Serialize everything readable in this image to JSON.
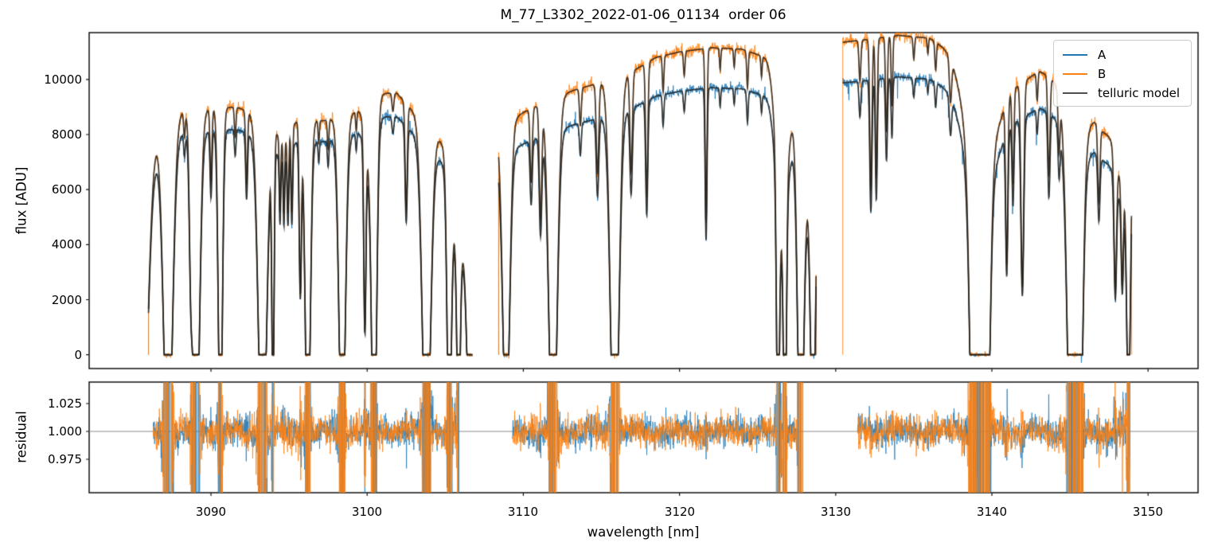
{
  "figure": {
    "title": "M_77_L3302_2022-01-06_01134  order 06",
    "xlabel": "wavelength [nm]",
    "ylabel_flux": "flux [ADU]",
    "ylabel_residual": "residual"
  },
  "chart_data": {
    "type": "line",
    "title": "M_77_L3302_2022-01-06_01134  order 06",
    "xlabel": "wavelength [nm]",
    "ylabel_top": "flux [ADU]",
    "ylabel_bottom": "residual",
    "grid": false,
    "legend_position": "upper right",
    "xlim": [
      3082.2,
      3153.2
    ],
    "x_tick_values": [
      3090,
      3100,
      3110,
      3120,
      3130,
      3140,
      3150
    ],
    "x_tick_labels": [
      "3090",
      "3100",
      "3110",
      "3120",
      "3130",
      "3140",
      "3150"
    ],
    "top_panel": {
      "ylim": [
        -500,
        11700
      ],
      "ytick_values": [
        0,
        2000,
        4000,
        6000,
        8000,
        10000
      ],
      "ytick_labels": [
        "0",
        "2000",
        "4000",
        "6000",
        "8000",
        "10000"
      ]
    },
    "residual_panel": {
      "ylim": [
        0.945,
        1.0443
      ],
      "ytick_values": [
        0.975,
        1.0,
        1.025
      ],
      "ytick_labels": [
        "0.975",
        "1.000",
        "1.025"
      ],
      "hline": 1.0,
      "hline_color": "#8a8a8a"
    },
    "series": [
      {
        "name": "A",
        "color": "#1f77b4"
      },
      {
        "name": "B",
        "color": "#ff7f0e"
      },
      {
        "name": "telluric model",
        "color": "#4d4d4d"
      }
    ],
    "colors": {
      "A": "#1f77b4",
      "B": "#ff7f0e",
      "model_stroke": "rgba(38,33,27,0.85)",
      "spine": "#111111"
    },
    "segments": [
      {
        "x_start": 3086.0,
        "x_end": 3106.75,
        "residual_x": [
          3086.3,
          3105.9
        ],
        "a_scale": 0.91,
        "b_zero_start": true,
        "a_zero_start": true,
        "b_zero_end": false,
        "a_zero_end": false,
        "a_downspikes": false,
        "continuum_B": [
          [
            3086.0,
            7600
          ],
          [
            3087.6,
            8800
          ],
          [
            3089.5,
            8900
          ],
          [
            3091.6,
            9000
          ],
          [
            3093.0,
            8700
          ],
          [
            3094.6,
            8800
          ],
          [
            3096.0,
            8500
          ],
          [
            3097.2,
            8500
          ],
          [
            3098.9,
            8700
          ],
          [
            3100.9,
            9500
          ],
          [
            3101.9,
            9500
          ],
          [
            3103.0,
            8800
          ],
          [
            3104.6,
            7900
          ],
          [
            3106.0,
            7300
          ],
          [
            3106.8,
            6800
          ]
        ],
        "lines": [
          [
            3085.6,
            1.5,
            0.35
          ],
          [
            3087.25,
            1.5,
            0.28
          ],
          [
            3088.3,
            0.1,
            0.05
          ],
          [
            3088.7,
            0.4,
            0.09
          ],
          [
            3089.05,
            1.45,
            0.22
          ],
          [
            3090.0,
            0.3,
            0.06
          ],
          [
            3090.6,
            1.4,
            0.13
          ],
          [
            3091.55,
            0.12,
            0.05
          ],
          [
            3092.28,
            0.3,
            0.06
          ],
          [
            3093.3,
            1.5,
            0.26
          ],
          [
            3093.97,
            1.15,
            0.07
          ],
          [
            3094.42,
            0.3,
            0.045
          ],
          [
            3094.6,
            0.12,
            0.45
          ],
          [
            3094.67,
            0.3,
            0.045
          ],
          [
            3094.93,
            0.32,
            0.05
          ],
          [
            3095.18,
            0.35,
            0.05
          ],
          [
            3095.72,
            0.72,
            0.07
          ],
          [
            3096.2,
            1.45,
            0.16
          ],
          [
            3096.9,
            0.1,
            0.04
          ],
          [
            3097.5,
            0.12,
            0.05
          ],
          [
            3098.4,
            1.45,
            0.2
          ],
          [
            3099.3,
            0.08,
            0.04
          ],
          [
            3099.85,
            0.78,
            0.07
          ],
          [
            3100.2,
            0.25,
            0.3
          ],
          [
            3100.45,
            1.35,
            0.15
          ],
          [
            3101.65,
            0.07,
            0.06
          ],
          [
            3102.5,
            0.42,
            0.07
          ],
          [
            3103.8,
            1.5,
            0.26
          ],
          [
            3105.25,
            1.3,
            0.13
          ],
          [
            3105.85,
            0.95,
            0.1
          ],
          [
            3105.9,
            0.5,
            0.45
          ],
          [
            3106.6,
            1.3,
            0.2
          ]
        ]
      },
      {
        "x_start": 3108.42,
        "x_end": 3128.75,
        "residual_x": [
          3109.3,
          3127.9
        ],
        "a_scale": 0.87,
        "b_zero_start": true,
        "a_zero_start": true,
        "b_zero_end": true,
        "a_zero_end": true,
        "a_downspikes": false,
        "continuum_B": [
          [
            3108.4,
            8200
          ],
          [
            3110.0,
            8800
          ],
          [
            3111.5,
            9200
          ],
          [
            3113.2,
            9600
          ],
          [
            3115.0,
            9900
          ],
          [
            3117.0,
            10300
          ],
          [
            3118.5,
            10800
          ],
          [
            3120.0,
            11000
          ],
          [
            3122.0,
            11150
          ],
          [
            3124.0,
            11100
          ],
          [
            3125.5,
            10800
          ],
          [
            3126.6,
            10200
          ],
          [
            3127.4,
            9000
          ],
          [
            3128.9,
            8200
          ]
        ],
        "lines": [
          [
            3108.9,
            1.35,
            0.22
          ],
          [
            3110.5,
            0.3,
            0.07
          ],
          [
            3111.1,
            0.45,
            0.08
          ],
          [
            3111.9,
            1.5,
            0.25
          ],
          [
            3113.65,
            0.14,
            0.06
          ],
          [
            3114.75,
            0.33,
            0.08
          ],
          [
            3115.85,
            1.5,
            0.26
          ],
          [
            3116.9,
            0.35,
            0.08
          ],
          [
            3117.9,
            0.45,
            0.07
          ],
          [
            3118.95,
            0.12,
            0.05
          ],
          [
            3120.3,
            0.08,
            0.05
          ],
          [
            3121.7,
            0.57,
            0.06
          ],
          [
            3122.6,
            0.07,
            0.04
          ],
          [
            3123.5,
            0.06,
            0.04
          ],
          [
            3124.35,
            0.12,
            0.05
          ],
          [
            3125.25,
            0.07,
            0.04
          ],
          [
            3126.3,
            0.92,
            0.09
          ],
          [
            3126.55,
            0.55,
            0.35
          ],
          [
            3126.75,
            0.95,
            0.09
          ],
          [
            3127.75,
            1.35,
            0.18
          ],
          [
            3128.1,
            0.3,
            0.4
          ],
          [
            3128.55,
            1.3,
            0.15
          ]
        ]
      },
      {
        "x_start": 3130.45,
        "x_end": 3148.95,
        "residual_x": [
          3131.4,
          3148.85
        ],
        "a_scale": 0.87,
        "b_zero_start": true,
        "a_zero_start": false,
        "b_zero_end": true,
        "a_zero_end": false,
        "a_downspikes": true,
        "continuum_B": [
          [
            3130.45,
            11350
          ],
          [
            3132.0,
            11450
          ],
          [
            3134.0,
            11600
          ],
          [
            3136.0,
            11500
          ],
          [
            3137.5,
            11000
          ],
          [
            3139.0,
            10300
          ],
          [
            3140.6,
            9500
          ],
          [
            3142.0,
            9900
          ],
          [
            3143.0,
            10300
          ],
          [
            3144.5,
            9900
          ],
          [
            3146.0,
            9200
          ],
          [
            3147.3,
            9000
          ],
          [
            3148.0,
            8800
          ],
          [
            3149.0,
            8400
          ]
        ],
        "lines": [
          [
            3131.55,
            0.13,
            0.06
          ],
          [
            3132.25,
            0.48,
            0.07
          ],
          [
            3132.6,
            0.44,
            0.06
          ],
          [
            3133.25,
            0.3,
            0.06
          ],
          [
            3133.6,
            0.22,
            0.05
          ],
          [
            3135.0,
            0.07,
            0.05
          ],
          [
            3135.9,
            0.05,
            0.04
          ],
          [
            3136.4,
            0.09,
            0.05
          ],
          [
            3137.35,
            0.14,
            0.07
          ],
          [
            3139.2,
            0.45,
            0.8
          ],
          [
            3138.9,
            1.45,
            0.25
          ],
          [
            3139.6,
            1.4,
            0.23
          ],
          [
            3140.95,
            0.62,
            0.07
          ],
          [
            3141.35,
            0.35,
            0.06
          ],
          [
            3141.95,
            0.75,
            0.09
          ],
          [
            3142.9,
            0.1,
            0.05
          ],
          [
            3143.65,
            0.35,
            0.07
          ],
          [
            3144.3,
            0.2,
            0.06
          ],
          [
            3145.35,
            0.35,
            0.55
          ],
          [
            3145.1,
            1.3,
            0.25
          ],
          [
            3145.6,
            1.25,
            0.2
          ],
          [
            3146.85,
            0.3,
            0.07
          ],
          [
            3147.2,
            0.1,
            0.5
          ],
          [
            3147.9,
            0.55,
            0.08
          ],
          [
            3148.3,
            0.25,
            0.4
          ],
          [
            3148.35,
            0.45,
            0.07
          ],
          [
            3148.75,
            1.1,
            0.12
          ]
        ]
      }
    ],
    "noise": {
      "flux_sigma_base": 30,
      "flux_sigma_trans": 62,
      "residual_sigma_base": 0.0065,
      "residual_sigma_floor": 0.0045
    }
  }
}
